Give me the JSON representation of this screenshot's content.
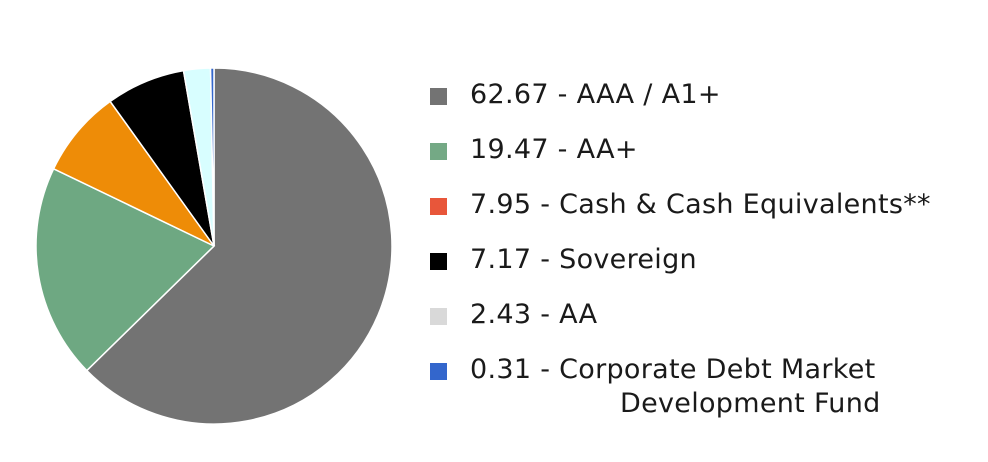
{
  "chart_data": {
    "type": "pie",
    "series": [
      {
        "name": "",
        "slices": [
          {
            "label": "AAA / A1+",
            "value": 62.67,
            "display": "62.67 - AAA / A1+",
            "fill": "#737373",
            "swatch": "#737373"
          },
          {
            "label": "AA+",
            "value": 19.47,
            "display": "19.47 - AA+",
            "fill": "#6ea882",
            "swatch": "#74a985"
          },
          {
            "label": "Cash & Cash Equivalents**",
            "value": 7.95,
            "display": "7.95 - Cash & Cash Equivalents**",
            "fill": "#ee8c07",
            "swatch": "#e8563a"
          },
          {
            "label": "Sovereign",
            "value": 7.17,
            "display": "7.17 - Sovereign",
            "fill": "#000000",
            "swatch": "#000000"
          },
          {
            "label": "AA",
            "value": 2.43,
            "display": "2.43 - AA",
            "fill": "#d8feff",
            "swatch": "#d9d9d9"
          },
          {
            "label": "Corporate Debt Market Development Fund",
            "value": 0.31,
            "display_line1": "0.31 - Corporate Debt Market",
            "display_line2": "Development Fund",
            "fill": "#3366cc",
            "swatch": "#3366cc"
          }
        ]
      }
    ],
    "start_angle_deg": 0,
    "direction": "clockwise",
    "legend_placement": "right"
  }
}
